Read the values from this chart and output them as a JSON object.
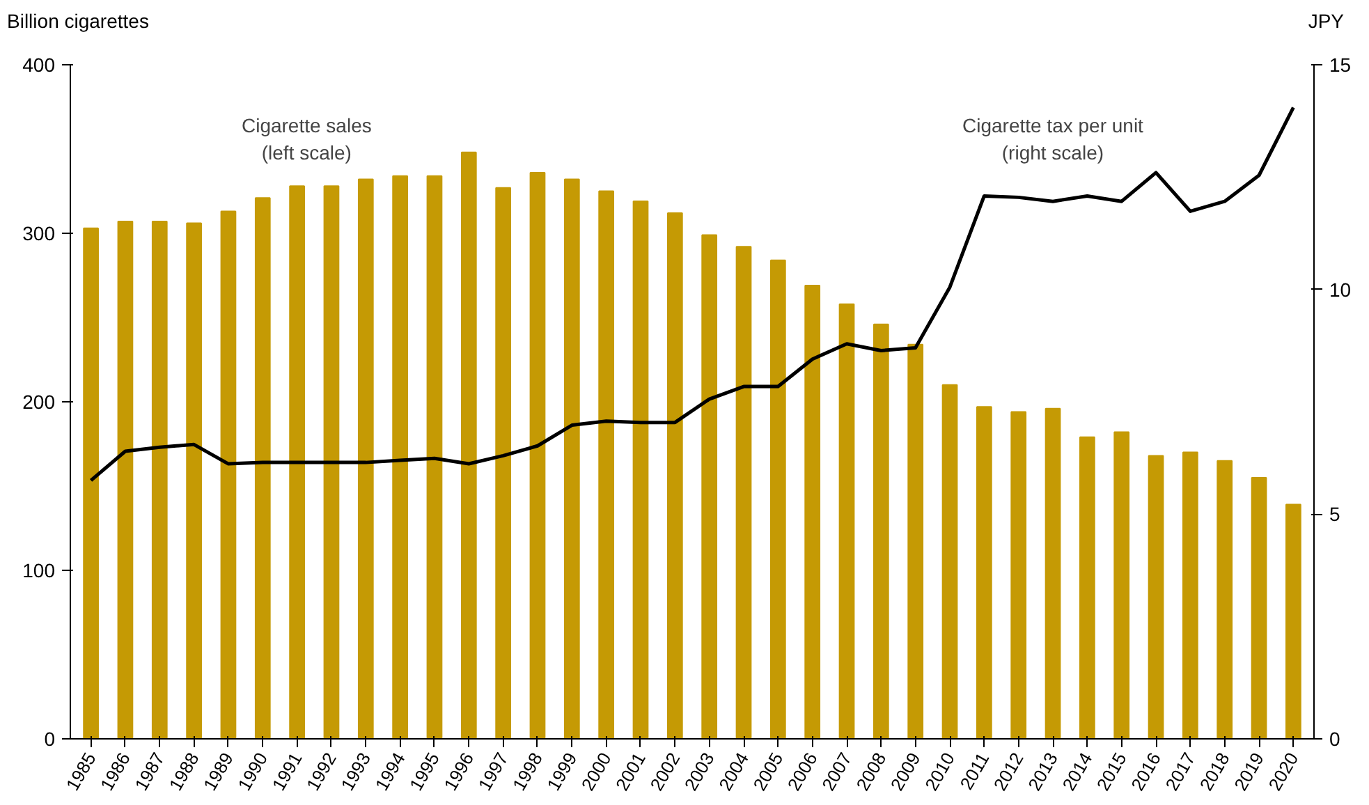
{
  "chart_data": {
    "type": "bar",
    "categories": [
      "1985",
      "1986",
      "1987",
      "1988",
      "1989",
      "1990",
      "1991",
      "1992",
      "1993",
      "1994",
      "1995",
      "1996",
      "1997",
      "1998",
      "1999",
      "2000",
      "2001",
      "2002",
      "2003",
      "2004",
      "2005",
      "2006",
      "2007",
      "2008",
      "2009",
      "2010",
      "2011",
      "2012",
      "2013",
      "2014",
      "2015",
      "2016",
      "2017",
      "2018",
      "2019",
      "2020"
    ],
    "series": [
      {
        "color": "#c59a04",
        "values": [
          303,
          307,
          307,
          306,
          313,
          321,
          328,
          328,
          332,
          334,
          334,
          348,
          327,
          336,
          332,
          325,
          319,
          312,
          299,
          292,
          284,
          269,
          258,
          246,
          234,
          210,
          197,
          194,
          196,
          179,
          182,
          168,
          170,
          165,
          155,
          139
        ]
      },
      {
        "type": "line",
        "axis": "y2",
        "color": "#000000",
        "values": [
          5.75,
          6.4,
          6.49,
          6.55,
          6.12,
          6.15,
          6.15,
          6.15,
          6.15,
          6.2,
          6.24,
          6.12,
          6.3,
          6.52,
          6.98,
          7.07,
          7.04,
          7.04,
          7.56,
          7.84,
          7.84,
          8.45,
          8.79,
          8.64,
          8.7,
          10.05,
          12.08,
          12.05,
          11.96,
          12.08,
          11.96,
          12.6,
          11.74,
          11.96,
          12.54,
          14.05
        ]
      }
    ],
    "ylabel": "Billion cigarettes",
    "y2label": "JPY",
    "ylim": [
      0,
      400
    ],
    "yticks": [
      0,
      100,
      200,
      300,
      400
    ],
    "y2lim": [
      0,
      15
    ],
    "y2ticks": [
      0,
      5,
      10,
      15
    ],
    "annotations": [
      "Cigarette sales\n(left scale)",
      "Cigarette tax per unit\n(right scale)"
    ]
  }
}
